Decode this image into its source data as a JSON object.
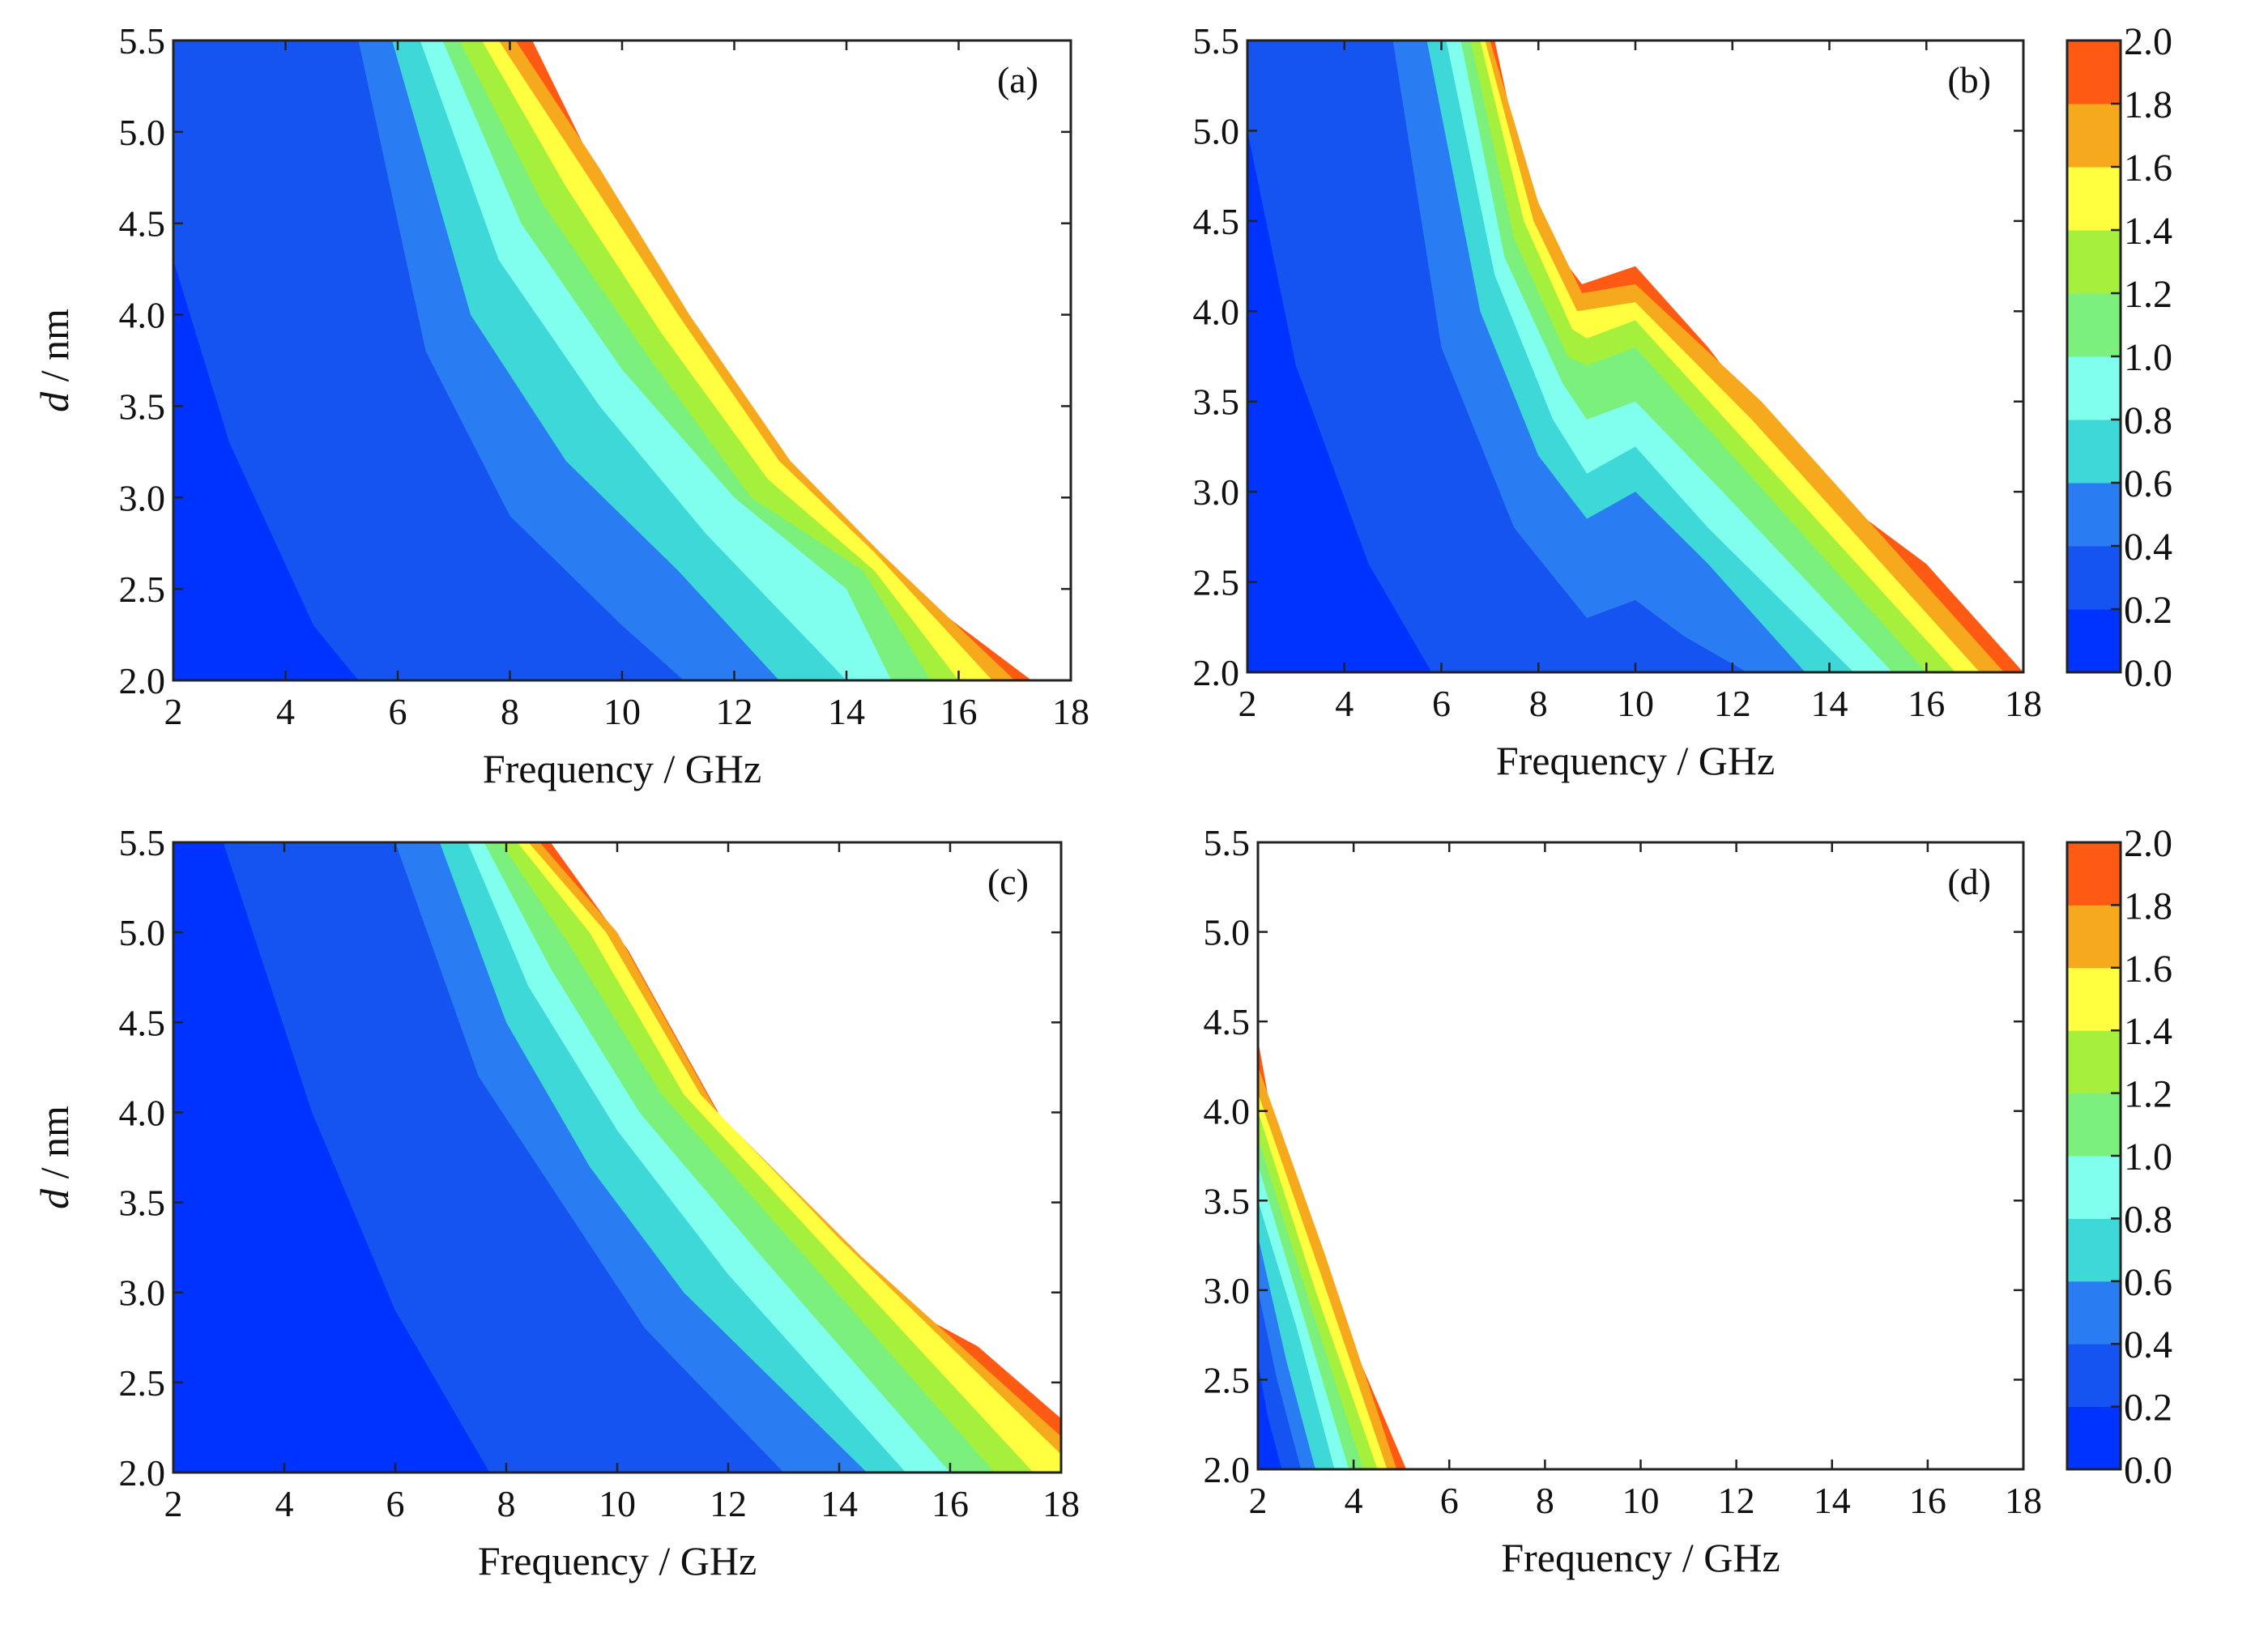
{
  "chart_data": [
    {
      "type": "heatmap",
      "panel_label": "(a)",
      "xlabel": "Frequency / GHz",
      "ylabel_italic": "d",
      "ylabel_rest": " / nm",
      "xlim": [
        2,
        18
      ],
      "ylim": [
        2.0,
        5.5
      ],
      "xticks": [
        "2",
        "4",
        "6",
        "8",
        "10",
        "12",
        "14",
        "16",
        "18"
      ],
      "yticks": [
        "2.0",
        "2.5",
        "3.0",
        "3.5",
        "4.0",
        "4.5",
        "5.0",
        "5.5"
      ],
      "contour_boundaries": [
        {
          "level": 0.2,
          "points": [
            [
              2.0,
              4.3
            ],
            [
              3.0,
              3.3
            ],
            [
              4.5,
              2.3
            ],
            [
              5.3,
              2.0
            ]
          ]
        },
        {
          "level": 0.4,
          "points": [
            [
              5.3,
              5.5
            ],
            [
              6.5,
              3.8
            ],
            [
              8.0,
              2.9
            ],
            [
              10.0,
              2.3
            ],
            [
              11.1,
              2.0
            ]
          ]
        },
        {
          "level": 0.6,
          "points": [
            [
              5.9,
              5.5
            ],
            [
              7.3,
              4.0
            ],
            [
              9.0,
              3.2
            ],
            [
              11.0,
              2.6
            ],
            [
              12.8,
              2.0
            ]
          ]
        },
        {
          "level": 0.8,
          "points": [
            [
              6.4,
              5.5
            ],
            [
              7.8,
              4.3
            ],
            [
              9.6,
              3.5
            ],
            [
              11.5,
              2.8
            ],
            [
              14.0,
              2.0
            ]
          ]
        },
        {
          "level": 1.0,
          "points": [
            [
              6.8,
              5.5
            ],
            [
              8.2,
              4.5
            ],
            [
              10.0,
              3.7
            ],
            [
              12.0,
              3.0
            ],
            [
              14.0,
              2.5
            ],
            [
              14.8,
              2.0
            ]
          ]
        },
        {
          "level": 1.2,
          "points": [
            [
              7.1,
              5.5
            ],
            [
              8.6,
              4.6
            ],
            [
              10.4,
              3.8
            ],
            [
              12.3,
              3.0
            ],
            [
              14.3,
              2.6
            ],
            [
              15.5,
              2.0
            ]
          ]
        },
        {
          "level": 1.4,
          "points": [
            [
              7.5,
              5.5
            ],
            [
              9.0,
              4.7
            ],
            [
              10.7,
              3.9
            ],
            [
              12.6,
              3.1
            ],
            [
              14.5,
              2.6
            ],
            [
              16.0,
              2.0
            ]
          ]
        },
        {
          "level": 1.6,
          "points": [
            [
              7.8,
              5.5
            ],
            [
              9.3,
              4.8
            ],
            [
              11.0,
              4.0
            ],
            [
              12.8,
              3.2
            ],
            [
              14.5,
              2.7
            ],
            [
              16.6,
              2.0
            ]
          ]
        },
        {
          "level": 1.8,
          "points": [
            [
              8.1,
              5.5
            ],
            [
              9.6,
              4.8
            ],
            [
              11.2,
              4.0
            ],
            [
              13.0,
              3.2
            ],
            [
              14.6,
              2.7
            ],
            [
              17.0,
              2.0
            ]
          ]
        },
        {
          "level": 2.0,
          "points": [
            [
              8.4,
              5.5
            ],
            [
              10.0,
              4.5
            ],
            [
              11.5,
              3.8
            ],
            [
              13.2,
              3.1
            ],
            [
              14.3,
              2.7
            ],
            [
              16.0,
              2.3
            ],
            [
              17.3,
              2.0
            ]
          ]
        }
      ]
    },
    {
      "type": "heatmap",
      "panel_label": "(b)",
      "xlabel": "Frequency / GHz",
      "ylabel_italic": "",
      "ylabel_rest": "",
      "xlim": [
        2,
        18
      ],
      "ylim": [
        2.0,
        5.5
      ],
      "xticks": [
        "2",
        "4",
        "6",
        "8",
        "10",
        "12",
        "14",
        "16",
        "18"
      ],
      "yticks": [
        "2.0",
        "2.5",
        "3.0",
        "3.5",
        "4.0",
        "4.5",
        "5.0",
        "5.5"
      ],
      "contour_boundaries": [
        {
          "level": 0.2,
          "points": [
            [
              2.0,
              5.0
            ],
            [
              3.0,
              3.7
            ],
            [
              4.5,
              2.6
            ],
            [
              5.8,
              2.0
            ]
          ]
        },
        {
          "level": 0.4,
          "points": [
            [
              5.0,
              5.5
            ],
            [
              6.0,
              3.8
            ],
            [
              7.5,
              2.8
            ],
            [
              9.0,
              2.3
            ],
            [
              10.0,
              2.4
            ],
            [
              11.0,
              2.2
            ],
            [
              12.3,
              2.0
            ]
          ]
        },
        {
          "level": 0.6,
          "points": [
            [
              5.7,
              5.5
            ],
            [
              6.8,
              4.0
            ],
            [
              8.0,
              3.2
            ],
            [
              9.0,
              2.85
            ],
            [
              10.0,
              3.0
            ],
            [
              11.5,
              2.6
            ],
            [
              13.5,
              2.0
            ]
          ]
        },
        {
          "level": 0.8,
          "points": [
            [
              6.1,
              5.5
            ],
            [
              7.1,
              4.2
            ],
            [
              8.3,
              3.4
            ],
            [
              9.0,
              3.1
            ],
            [
              10.0,
              3.25
            ],
            [
              11.5,
              2.8
            ],
            [
              14.5,
              2.0
            ]
          ]
        },
        {
          "level": 1.0,
          "points": [
            [
              6.4,
              5.5
            ],
            [
              7.3,
              4.3
            ],
            [
              8.5,
              3.6
            ],
            [
              9.0,
              3.4
            ],
            [
              10.0,
              3.5
            ],
            [
              11.8,
              3.0
            ],
            [
              15.3,
              2.0
            ]
          ]
        },
        {
          "level": 1.2,
          "points": [
            [
              6.6,
              5.5
            ],
            [
              7.5,
              4.4
            ],
            [
              8.6,
              3.75
            ],
            [
              9.0,
              3.7
            ],
            [
              10.0,
              3.8
            ],
            [
              12.0,
              3.2
            ],
            [
              16.0,
              2.0
            ]
          ]
        },
        {
          "level": 1.4,
          "points": [
            [
              6.8,
              5.5
            ],
            [
              7.7,
              4.5
            ],
            [
              8.7,
              3.9
            ],
            [
              9.0,
              3.85
            ],
            [
              10.0,
              3.95
            ],
            [
              12.2,
              3.3
            ],
            [
              16.6,
              2.0
            ]
          ]
        },
        {
          "level": 1.6,
          "points": [
            [
              6.9,
              5.5
            ],
            [
              7.9,
              4.5
            ],
            [
              8.8,
              4.0
            ],
            [
              10.0,
              4.05
            ],
            [
              12.4,
              3.4
            ],
            [
              17.1,
              2.0
            ]
          ]
        },
        {
          "level": 1.8,
          "points": [
            [
              7.0,
              5.5
            ],
            [
              8.0,
              4.6
            ],
            [
              8.9,
              4.1
            ],
            [
              10.0,
              4.15
            ],
            [
              12.6,
              3.5
            ],
            [
              17.6,
              2.0
            ]
          ]
        },
        {
          "level": 2.0,
          "points": [
            [
              7.1,
              5.5
            ],
            [
              7.9,
              4.5
            ],
            [
              8.9,
              4.15
            ],
            [
              10.0,
              4.25
            ],
            [
              11.5,
              3.8
            ],
            [
              13.5,
              3.1
            ],
            [
              16.0,
              2.6
            ],
            [
              18.0,
              2.0
            ]
          ]
        }
      ]
    },
    {
      "type": "heatmap",
      "panel_label": "(c)",
      "xlabel": "Frequency / GHz",
      "ylabel_italic": "d",
      "ylabel_rest": " / nm",
      "xlim": [
        2,
        18
      ],
      "ylim": [
        2.0,
        5.5
      ],
      "xticks": [
        "2",
        "4",
        "6",
        "8",
        "10",
        "12",
        "14",
        "16",
        "18"
      ],
      "yticks": [
        "2.0",
        "2.5",
        "3.0",
        "3.5",
        "4.0",
        "4.5",
        "5.0",
        "5.5"
      ],
      "contour_boundaries": [
        {
          "level": 0.2,
          "points": [
            [
              2.9,
              5.5
            ],
            [
              4.5,
              4.0
            ],
            [
              6.0,
              2.9
            ],
            [
              7.7,
              2.0
            ]
          ]
        },
        {
          "level": 0.4,
          "points": [
            [
              6.0,
              5.5
            ],
            [
              7.5,
              4.2
            ],
            [
              9.0,
              3.5
            ],
            [
              10.5,
              2.8
            ],
            [
              13.0,
              2.0
            ]
          ]
        },
        {
          "level": 0.6,
          "points": [
            [
              6.8,
              5.5
            ],
            [
              8.0,
              4.5
            ],
            [
              9.5,
              3.7
            ],
            [
              11.2,
              3.0
            ],
            [
              14.5,
              2.0
            ]
          ]
        },
        {
          "level": 0.8,
          "points": [
            [
              7.3,
              5.5
            ],
            [
              8.4,
              4.7
            ],
            [
              10.0,
              3.9
            ],
            [
              12.0,
              3.1
            ],
            [
              15.2,
              2.0
            ]
          ]
        },
        {
          "level": 1.0,
          "points": [
            [
              7.6,
              5.5
            ],
            [
              8.8,
              4.8
            ],
            [
              10.4,
              4.0
            ],
            [
              12.6,
              3.2
            ],
            [
              16.0,
              2.0
            ]
          ]
        },
        {
          "level": 1.2,
          "points": [
            [
              7.9,
              5.5
            ],
            [
              9.2,
              4.9
            ],
            [
              10.8,
              4.1
            ],
            [
              13.1,
              3.3
            ],
            [
              16.8,
              2.0
            ]
          ]
        },
        {
          "level": 1.4,
          "points": [
            [
              8.2,
              5.5
            ],
            [
              9.5,
              5.0
            ],
            [
              11.2,
              4.1
            ],
            [
              13.6,
              3.3
            ],
            [
              17.5,
              2.0
            ]
          ]
        },
        {
          "level": 1.6,
          "points": [
            [
              8.4,
              5.5
            ],
            [
              9.8,
              5.0
            ],
            [
              11.5,
              4.1
            ],
            [
              14.0,
              3.3
            ],
            [
              18.0,
              2.1
            ]
          ]
        },
        {
          "level": 1.8,
          "points": [
            [
              8.6,
              5.5
            ],
            [
              10.0,
              5.0
            ],
            [
              11.8,
              4.0
            ],
            [
              14.4,
              3.2
            ],
            [
              18.0,
              2.2
            ]
          ]
        },
        {
          "level": 2.0,
          "points": [
            [
              8.8,
              5.5
            ],
            [
              10.2,
              4.9
            ],
            [
              12.0,
              3.9
            ],
            [
              14.7,
              3.0
            ],
            [
              16.5,
              2.7
            ],
            [
              18.0,
              2.3
            ]
          ]
        }
      ]
    },
    {
      "type": "heatmap",
      "panel_label": "(d)",
      "xlabel": "Frequency / GHz",
      "ylabel_italic": "",
      "ylabel_rest": "",
      "xlim": [
        2,
        18
      ],
      "ylim": [
        2.0,
        5.5
      ],
      "xticks": [
        "2",
        "4",
        "6",
        "8",
        "10",
        "12",
        "14",
        "16",
        "18"
      ],
      "yticks": [
        "2.0",
        "2.5",
        "3.0",
        "3.5",
        "4.0",
        "4.5",
        "5.0",
        "5.5"
      ],
      "contour_boundaries": [
        {
          "level": 0.2,
          "points": [
            [
              2.0,
              2.6
            ],
            [
              2.2,
              2.3
            ],
            [
              2.5,
              2.0
            ]
          ]
        },
        {
          "level": 0.4,
          "points": [
            [
              2.0,
              3.0
            ],
            [
              2.4,
              2.5
            ],
            [
              2.9,
              2.0
            ]
          ]
        },
        {
          "level": 0.6,
          "points": [
            [
              2.0,
              3.3
            ],
            [
              2.6,
              2.6
            ],
            [
              3.2,
              2.0
            ]
          ]
        },
        {
          "level": 0.8,
          "points": [
            [
              2.0,
              3.5
            ],
            [
              2.8,
              2.8
            ],
            [
              3.6,
              2.0
            ]
          ]
        },
        {
          "level": 1.0,
          "points": [
            [
              2.0,
              3.7
            ],
            [
              2.9,
              2.9
            ],
            [
              3.9,
              2.0
            ]
          ]
        },
        {
          "level": 1.2,
          "points": [
            [
              2.0,
              3.85
            ],
            [
              3.0,
              3.0
            ],
            [
              4.2,
              2.0
            ]
          ]
        },
        {
          "level": 1.4,
          "points": [
            [
              2.0,
              4.0
            ],
            [
              3.2,
              3.0
            ],
            [
              4.5,
              2.0
            ]
          ]
        },
        {
          "level": 1.6,
          "points": [
            [
              2.0,
              4.1
            ],
            [
              3.3,
              3.1
            ],
            [
              4.7,
              2.0
            ]
          ]
        },
        {
          "level": 1.8,
          "points": [
            [
              2.0,
              4.25
            ],
            [
              3.4,
              3.2
            ],
            [
              4.9,
              2.0
            ]
          ]
        },
        {
          "level": 2.0,
          "points": [
            [
              2.0,
              4.4
            ],
            [
              2.4,
              3.8
            ],
            [
              3.5,
              3.0
            ],
            [
              5.1,
              2.0
            ]
          ]
        }
      ]
    }
  ],
  "colorbar": {
    "range": [
      0.0,
      2.0
    ],
    "ticks": [
      "0.0",
      "0.2",
      "0.4",
      "0.6",
      "0.8",
      "1.0",
      "1.2",
      "1.4",
      "1.6",
      "1.8",
      "2.0"
    ],
    "colors": [
      "#0033ff",
      "#1654f2",
      "#2a7cf2",
      "#3ed8d8",
      "#80ffee",
      "#7cf07c",
      "#a4f03c",
      "#ffff40",
      "#f6a91c",
      "#ff5a14"
    ]
  }
}
